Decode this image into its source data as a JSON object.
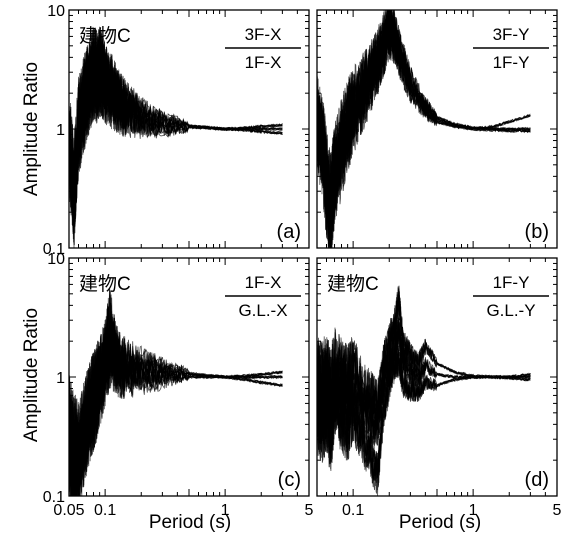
{
  "figure": {
    "ylabel": "Amplitude Ratio",
    "xlabel": "Period (s)",
    "x_ticks": [
      "0.05",
      "0.1",
      "1",
      "5"
    ],
    "y_ticks": [
      "0.1",
      "1",
      "10"
    ]
  },
  "chart_data": [
    {
      "type": "line",
      "panel_label": "(a)",
      "building_label": "建物C",
      "ratio_numerator": "3F-X",
      "ratio_denominator": "1F-X",
      "xscale": "log",
      "yscale": "log",
      "xlim": [
        0.05,
        5
      ],
      "ylim": [
        0.1,
        10
      ],
      "series": [
        {
          "x": [
            0.05,
            0.055,
            0.06,
            0.065,
            0.07,
            0.075,
            0.08,
            0.085,
            0.09,
            0.095,
            0.1,
            0.11,
            0.12,
            0.13,
            0.15,
            0.2,
            0.3,
            0.5,
            0.7,
            1.0,
            1.5,
            2.0,
            3.0
          ],
          "values": [
            0.8,
            0.2,
            1.0,
            1.5,
            2.0,
            2.5,
            3.0,
            2.8,
            3.2,
            3.0,
            2.6,
            2.3,
            2.0,
            1.8,
            1.5,
            1.25,
            1.1,
            1.05,
            1.03,
            1.0,
            1.0,
            1.0,
            1.0
          ]
        },
        {
          "x": [
            0.05,
            0.055,
            0.06,
            0.065,
            0.07,
            0.075,
            0.08,
            0.085,
            0.09,
            0.095,
            0.1,
            0.11,
            0.12,
            0.13,
            0.15,
            0.2,
            0.3,
            0.5,
            0.7,
            1.0,
            1.5,
            2.0,
            3.0
          ],
          "values": [
            1.0,
            0.4,
            1.3,
            1.9,
            2.4,
            3.2,
            3.8,
            3.6,
            3.9,
            3.5,
            3.0,
            2.6,
            2.2,
            1.9,
            1.6,
            1.3,
            1.12,
            1.06,
            1.03,
            1.0,
            1.02,
            1.05,
            1.08
          ]
        },
        {
          "x": [
            0.05,
            0.055,
            0.06,
            0.065,
            0.07,
            0.075,
            0.08,
            0.085,
            0.09,
            0.095,
            0.1,
            0.11,
            0.12,
            0.13,
            0.15,
            0.2,
            0.3,
            0.5,
            0.7,
            1.0,
            1.5,
            2.0,
            3.0
          ],
          "values": [
            0.6,
            0.25,
            0.8,
            1.2,
            1.5,
            1.9,
            2.3,
            2.1,
            2.4,
            2.2,
            2.0,
            1.8,
            1.6,
            1.5,
            1.35,
            1.2,
            1.08,
            1.04,
            1.02,
            1.0,
            0.98,
            0.95,
            0.92
          ]
        }
      ]
    },
    {
      "type": "line",
      "panel_label": "(b)",
      "building_label": "",
      "ratio_numerator": "3F-Y",
      "ratio_denominator": "1F-Y",
      "xscale": "log",
      "yscale": "log",
      "xlim": [
        0.05,
        5
      ],
      "ylim": [
        0.1,
        10
      ],
      "series": [
        {
          "x": [
            0.05,
            0.055,
            0.06,
            0.065,
            0.07,
            0.08,
            0.09,
            0.1,
            0.12,
            0.14,
            0.16,
            0.18,
            0.2,
            0.22,
            0.25,
            0.3,
            0.4,
            0.5,
            0.7,
            1.0,
            1.5,
            2.0,
            3.0
          ],
          "values": [
            1.0,
            0.8,
            0.35,
            0.2,
            0.4,
            0.7,
            1.0,
            1.4,
            2.0,
            2.8,
            3.8,
            5.2,
            7.0,
            6.0,
            4.0,
            2.4,
            1.5,
            1.2,
            1.08,
            1.0,
            1.05,
            1.15,
            1.3
          ]
        },
        {
          "x": [
            0.05,
            0.055,
            0.06,
            0.065,
            0.07,
            0.08,
            0.09,
            0.1,
            0.12,
            0.14,
            0.16,
            0.18,
            0.2,
            0.22,
            0.25,
            0.3,
            0.4,
            0.5,
            0.7,
            1.0,
            1.5,
            2.0,
            3.0
          ],
          "values": [
            1.3,
            1.0,
            0.5,
            0.3,
            0.6,
            1.0,
            1.4,
            1.9,
            2.6,
            3.4,
            4.5,
            6.5,
            9.5,
            7.2,
            4.6,
            2.7,
            1.6,
            1.25,
            1.1,
            1.02,
            1.0,
            1.0,
            1.0
          ]
        },
        {
          "x": [
            0.05,
            0.055,
            0.06,
            0.065,
            0.07,
            0.08,
            0.09,
            0.1,
            0.12,
            0.14,
            0.16,
            0.18,
            0.2,
            0.22,
            0.25,
            0.3,
            0.4,
            0.5,
            0.7,
            1.0,
            1.5,
            2.0,
            3.0
          ],
          "values": [
            0.9,
            0.6,
            0.25,
            0.15,
            0.3,
            0.5,
            0.8,
            1.1,
            1.6,
            2.2,
            3.0,
            4.2,
            5.5,
            5.0,
            3.4,
            2.1,
            1.4,
            1.15,
            1.05,
            1.0,
            0.98,
            0.97,
            0.96
          ]
        }
      ]
    },
    {
      "type": "line",
      "panel_label": "(c)",
      "building_label": "建物C",
      "ratio_numerator": "1F-X",
      "ratio_denominator": "G.L.-X",
      "xscale": "log",
      "yscale": "log",
      "xlim": [
        0.05,
        5
      ],
      "ylim": [
        0.1,
        10
      ],
      "series": [
        {
          "x": [
            0.05,
            0.055,
            0.06,
            0.065,
            0.07,
            0.075,
            0.08,
            0.085,
            0.09,
            0.1,
            0.11,
            0.12,
            0.13,
            0.15,
            0.2,
            0.3,
            0.5,
            0.7,
            1.0,
            1.5,
            2.0,
            3.0
          ],
          "values": [
            0.3,
            0.2,
            0.22,
            0.3,
            0.4,
            0.5,
            0.6,
            0.75,
            0.9,
            1.3,
            1.8,
            1.5,
            1.3,
            1.2,
            1.15,
            1.1,
            1.05,
            1.02,
            1.0,
            1.0,
            1.0,
            1.0
          ]
        },
        {
          "x": [
            0.05,
            0.055,
            0.06,
            0.065,
            0.07,
            0.075,
            0.08,
            0.085,
            0.09,
            0.1,
            0.11,
            0.12,
            0.13,
            0.15,
            0.2,
            0.3,
            0.5,
            0.7,
            1.0,
            1.5,
            2.0,
            3.0
          ],
          "values": [
            0.5,
            0.35,
            0.3,
            0.42,
            0.55,
            0.7,
            0.85,
            1.0,
            1.2,
            1.7,
            3.3,
            1.9,
            1.5,
            1.35,
            1.25,
            1.15,
            1.08,
            1.03,
            1.0,
            1.02,
            1.05,
            1.1
          ]
        },
        {
          "x": [
            0.05,
            0.055,
            0.06,
            0.065,
            0.07,
            0.075,
            0.08,
            0.085,
            0.09,
            0.1,
            0.11,
            0.12,
            0.13,
            0.15,
            0.2,
            0.3,
            0.5,
            0.7,
            1.0,
            1.5,
            2.0,
            3.0
          ],
          "values": [
            0.2,
            0.12,
            0.15,
            0.22,
            0.3,
            0.38,
            0.45,
            0.55,
            0.7,
            1.0,
            1.4,
            1.25,
            1.1,
            1.05,
            1.0,
            1.0,
            1.0,
            1.0,
            1.0,
            0.95,
            0.9,
            0.85
          ]
        }
      ]
    },
    {
      "type": "line",
      "panel_label": "(d)",
      "building_label": "建物C",
      "ratio_numerator": "1F-Y",
      "ratio_denominator": "G.L.-Y",
      "xscale": "log",
      "yscale": "log",
      "xlim": [
        0.05,
        5
      ],
      "ylim": [
        0.1,
        10
      ],
      "series": [
        {
          "x": [
            0.05,
            0.055,
            0.06,
            0.065,
            0.07,
            0.08,
            0.09,
            0.1,
            0.12,
            0.14,
            0.16,
            0.18,
            0.2,
            0.22,
            0.24,
            0.26,
            0.3,
            0.35,
            0.4,
            0.5,
            0.7,
            1.0,
            1.5,
            2.0,
            3.0
          ],
          "values": [
            0.7,
            0.6,
            0.8,
            0.5,
            0.9,
            0.7,
            0.6,
            0.75,
            0.5,
            0.45,
            0.4,
            0.9,
            1.3,
            1.8,
            2.4,
            1.4,
            1.1,
            1.0,
            1.25,
            1.05,
            1.0,
            1.0,
            1.0,
            1.0,
            1.0
          ]
        },
        {
          "x": [
            0.05,
            0.055,
            0.06,
            0.065,
            0.07,
            0.08,
            0.09,
            0.1,
            0.12,
            0.14,
            0.16,
            0.18,
            0.2,
            0.22,
            0.24,
            0.26,
            0.3,
            0.35,
            0.4,
            0.5,
            0.7,
            1.0,
            1.5,
            2.0,
            3.0
          ],
          "values": [
            1.0,
            0.9,
            1.2,
            0.8,
            1.4,
            1.1,
            1.0,
            1.3,
            0.8,
            0.7,
            0.6,
            1.3,
            2.0,
            2.6,
            4.5,
            2.0,
            1.5,
            1.3,
            1.8,
            1.3,
            1.1,
            1.02,
            1.0,
            1.0,
            1.05
          ]
        },
        {
          "x": [
            0.05,
            0.055,
            0.06,
            0.065,
            0.07,
            0.08,
            0.09,
            0.1,
            0.12,
            0.14,
            0.16,
            0.18,
            0.2,
            0.22,
            0.24,
            0.26,
            0.3,
            0.35,
            0.4,
            0.5,
            0.7,
            1.0,
            1.5,
            2.0,
            3.0
          ],
          "values": [
            0.45,
            0.4,
            0.5,
            0.3,
            0.6,
            0.45,
            0.35,
            0.5,
            0.3,
            0.22,
            0.15,
            0.55,
            0.9,
            1.2,
            1.4,
            0.9,
            0.8,
            0.75,
            0.9,
            0.85,
            0.95,
            1.0,
            1.0,
            0.98,
            0.95
          ]
        }
      ]
    }
  ]
}
